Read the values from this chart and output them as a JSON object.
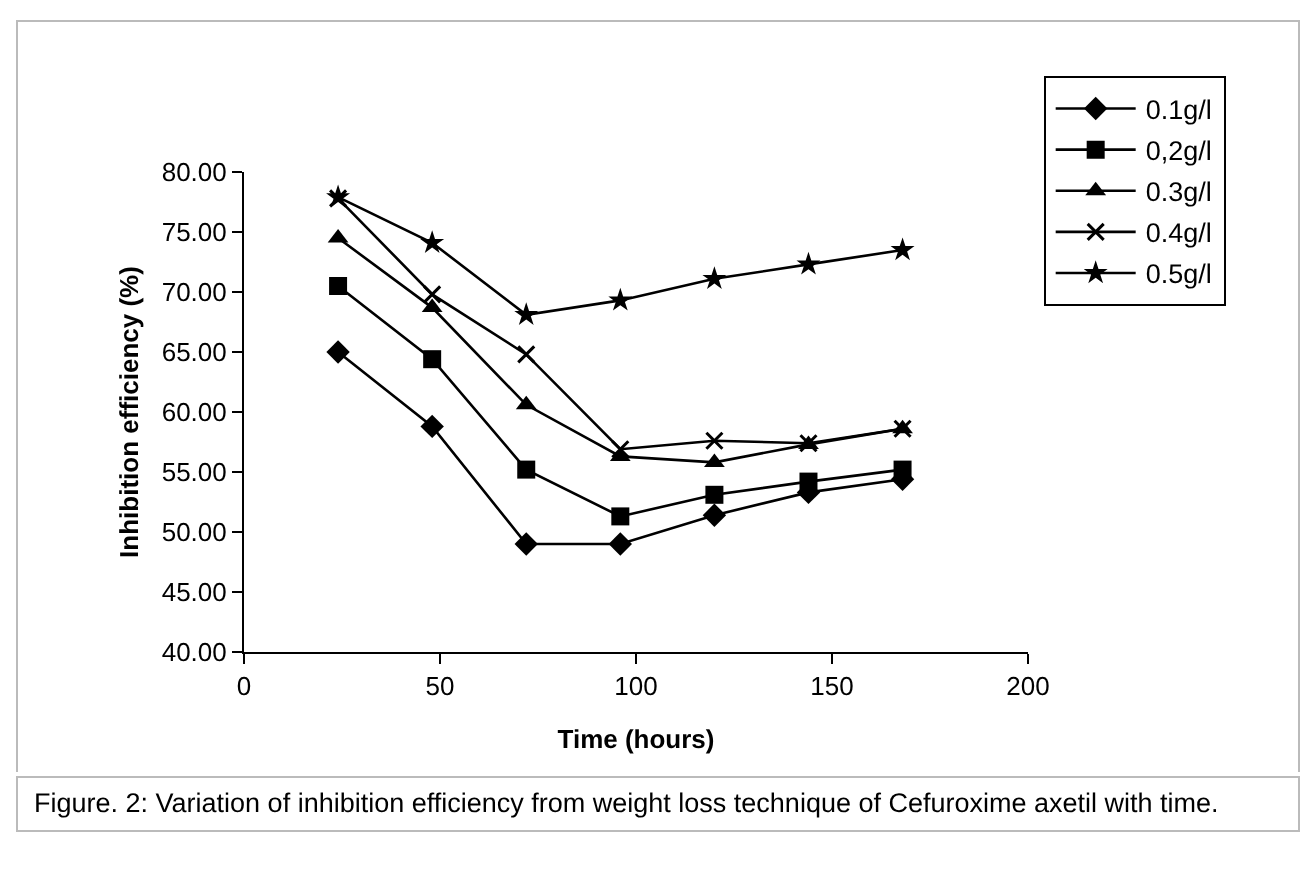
{
  "chart_data": {
    "type": "line",
    "xlabel": "Time (hours)",
    "ylabel": "Inhibition efficiency (%)",
    "x": [
      24,
      48,
      72,
      96,
      120,
      144,
      168
    ],
    "series": [
      {
        "name": "0.1g/l",
        "color": "#000000",
        "marker": "diamond",
        "values": [
          65.0,
          58.8,
          49.0,
          49.0,
          51.4,
          53.3,
          54.4
        ]
      },
      {
        "name": "0,2g/l",
        "color": "#000000",
        "marker": "square",
        "values": [
          70.5,
          64.4,
          55.2,
          51.3,
          53.1,
          54.2,
          55.2
        ]
      },
      {
        "name": "0.3g/l",
        "color": "#000000",
        "marker": "triangle",
        "values": [
          74.5,
          68.7,
          60.6,
          56.3,
          55.8,
          57.3,
          58.6
        ]
      },
      {
        "name": "0.4g/l",
        "color": "#000000",
        "marker": "cross",
        "values": [
          77.8,
          69.8,
          64.8,
          56.9,
          57.6,
          57.4,
          58.6
        ]
      },
      {
        "name": "0.5g/l",
        "color": "#000000",
        "marker": "star",
        "values": [
          77.9,
          74.1,
          68.1,
          69.3,
          71.1,
          72.3,
          73.5
        ]
      }
    ],
    "xlim": [
      0,
      200
    ],
    "xticks": [
      0,
      50,
      100,
      150,
      200
    ],
    "ylim": [
      40,
      80
    ],
    "yticks": [
      {
        "value": 40,
        "label": "40.00"
      },
      {
        "value": 45,
        "label": "45.00"
      },
      {
        "value": 50,
        "label": "50.00"
      },
      {
        "value": 55,
        "label": "55.00"
      },
      {
        "value": 60,
        "label": "60.00"
      },
      {
        "value": 65,
        "label": "65.00"
      },
      {
        "value": 70,
        "label": "70.00"
      },
      {
        "value": 75,
        "label": "75.00"
      },
      {
        "value": 80,
        "label": "80.00"
      }
    ],
    "grid": false,
    "legend": "top right",
    "line_style": "solid",
    "annotations": [
      "Figure. 2: Variation of inhibition efficiency from weight loss technique of Cefuroxime axetil with time."
    ]
  }
}
